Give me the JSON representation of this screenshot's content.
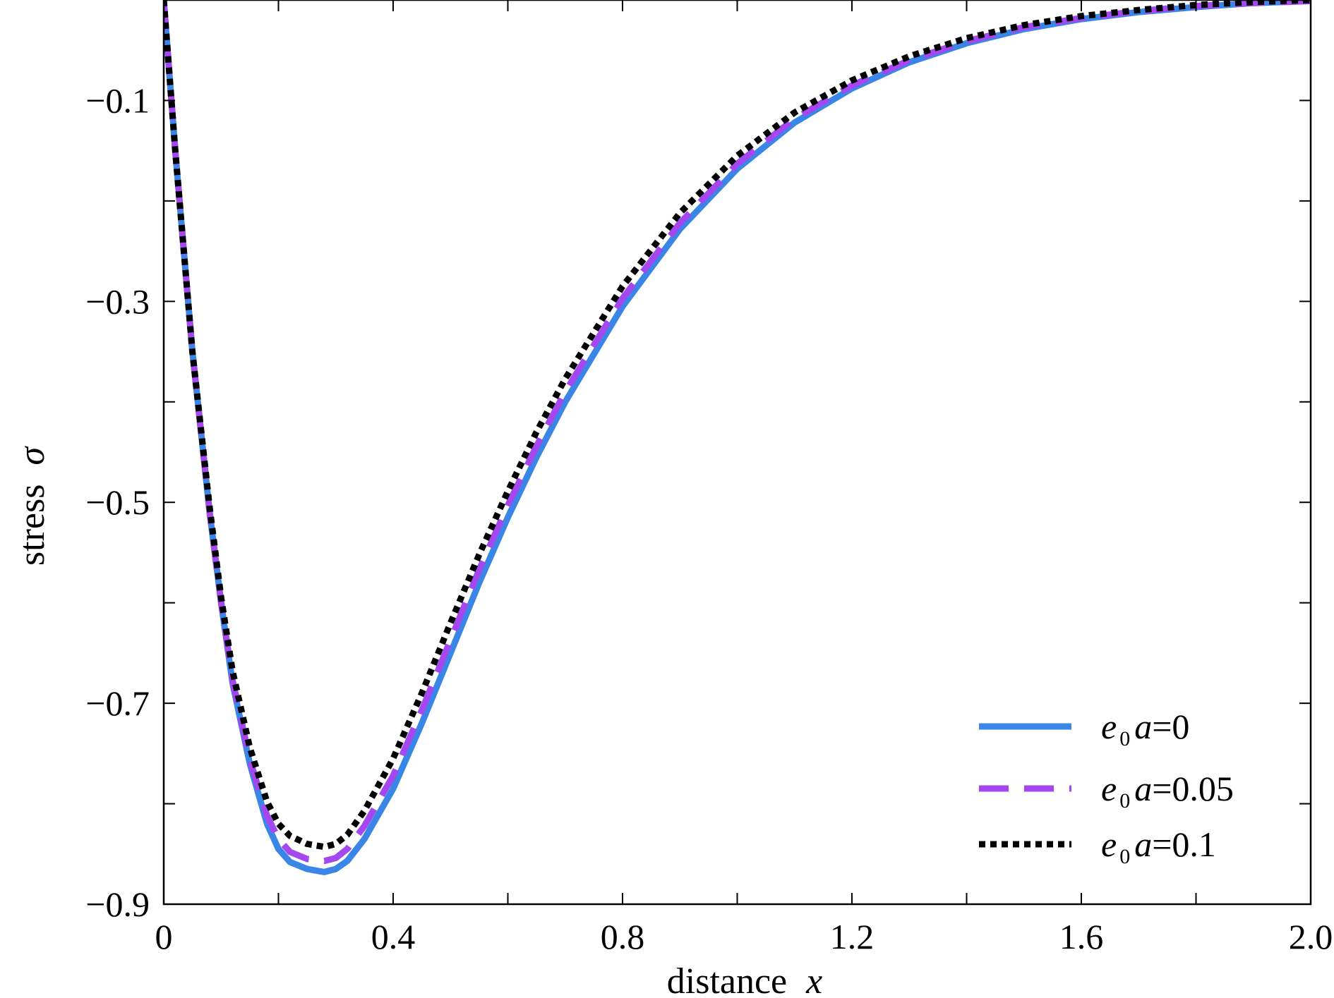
{
  "chart_data": {
    "type": "line",
    "xlabel": "distance",
    "xlabel_var": "x",
    "ylabel": "stress",
    "ylabel_var": "σ",
    "xlim": [
      0,
      2.0
    ],
    "ylim": [
      -0.9,
      0.0
    ],
    "xticks": [
      0,
      0.2,
      0.4,
      0.6,
      0.8,
      1.0,
      1.2,
      1.4,
      1.6,
      1.8,
      2.0
    ],
    "xtick_labels": [
      "0",
      "",
      "0.4",
      "",
      "0.8",
      "",
      "1.2",
      "",
      "1.6",
      "",
      "2.0"
    ],
    "yticks": [
      -0.9,
      -0.8,
      -0.7,
      -0.6,
      -0.5,
      -0.4,
      -0.3,
      -0.2,
      -0.1,
      0.0
    ],
    "ytick_labels": [
      "−0.9",
      "",
      "−0.7",
      "",
      "−0.5",
      "",
      "−0.3",
      "",
      "−0.1",
      ""
    ],
    "grid": false,
    "legend_position": "bottom-right",
    "x": [
      0,
      0.02,
      0.05,
      0.08,
      0.1,
      0.12,
      0.15,
      0.18,
      0.2,
      0.22,
      0.25,
      0.28,
      0.3,
      0.32,
      0.35,
      0.4,
      0.45,
      0.5,
      0.55,
      0.6,
      0.65,
      0.7,
      0.8,
      0.9,
      1.0,
      1.1,
      1.2,
      1.3,
      1.4,
      1.5,
      1.6,
      1.7,
      1.8,
      1.9,
      2.0
    ],
    "series": [
      {
        "legend_e": "e",
        "legend_sub": "0",
        "legend_a": "a",
        "legend_val": "=0",
        "color": "#3a86e6",
        "dash": "solid",
        "values": [
          0.0,
          -0.15,
          -0.35,
          -0.51,
          -0.6,
          -0.68,
          -0.76,
          -0.82,
          -0.845,
          -0.858,
          -0.865,
          -0.868,
          -0.865,
          -0.857,
          -0.835,
          -0.785,
          -0.72,
          -0.65,
          -0.58,
          -0.515,
          -0.455,
          -0.4,
          -0.305,
          -0.228,
          -0.168,
          -0.122,
          -0.088,
          -0.062,
          -0.043,
          -0.029,
          -0.019,
          -0.012,
          -0.007,
          -0.003,
          -0.001
        ]
      },
      {
        "legend_e": "e",
        "legend_sub": "0",
        "legend_a": "a",
        "legend_val": "=0.05",
        "color": "#a547ef",
        "dash": "dashed",
        "values": [
          0.0,
          -0.15,
          -0.35,
          -0.51,
          -0.6,
          -0.677,
          -0.756,
          -0.812,
          -0.835,
          -0.848,
          -0.855,
          -0.857,
          -0.854,
          -0.845,
          -0.822,
          -0.772,
          -0.707,
          -0.637,
          -0.567,
          -0.503,
          -0.444,
          -0.39,
          -0.297,
          -0.222,
          -0.163,
          -0.118,
          -0.085,
          -0.06,
          -0.041,
          -0.027,
          -0.018,
          -0.011,
          -0.006,
          -0.003,
          -0.001
        ]
      },
      {
        "legend_e": "e",
        "legend_sub": "0",
        "legend_a": "a",
        "legend_val": "=0.1",
        "color": "#000000",
        "dash": "dotted",
        "values": [
          0.0,
          -0.15,
          -0.35,
          -0.505,
          -0.595,
          -0.668,
          -0.744,
          -0.798,
          -0.82,
          -0.832,
          -0.84,
          -0.843,
          -0.84,
          -0.831,
          -0.807,
          -0.755,
          -0.69,
          -0.62,
          -0.552,
          -0.489,
          -0.43,
          -0.377,
          -0.285,
          -0.212,
          -0.155,
          -0.112,
          -0.08,
          -0.056,
          -0.038,
          -0.025,
          -0.016,
          -0.01,
          -0.005,
          -0.002,
          0.0
        ]
      }
    ]
  }
}
